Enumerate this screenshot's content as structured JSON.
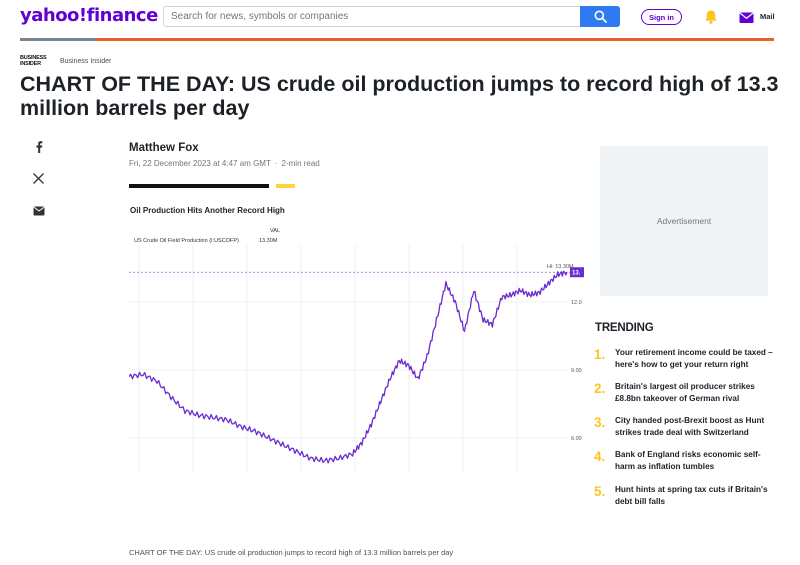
{
  "header": {
    "logo_text": "yahoo!finance",
    "search_placeholder": "Search for news, symbols or companies",
    "signin_label": "Sign in",
    "mail_label": "Mail",
    "brand_color": "#6001d2",
    "accent_color": "#e8602c"
  },
  "source": {
    "logo_text": "BUSINESS INSIDER",
    "name": "Business Insider"
  },
  "article": {
    "title": "CHART OF THE DAY: US crude oil production jumps to record high of 13.3 million barrels per day",
    "author": "Matthew Fox",
    "date": "Fri, 22 December 2023 at 4:47 am GMT",
    "read_time": "2-min read",
    "caption": "CHART OF THE DAY: US crude oil production jumps to record high of 13.3 million barrels per day"
  },
  "share_icons": [
    "facebook-icon",
    "x-icon",
    "email-icon"
  ],
  "chart": {
    "title": "Oil Production Hits Another Record High",
    "val_header": "VAL",
    "series_label": "US Crude Oil Field Production (I:USCOFP)",
    "series_value": "13.30M",
    "hi_label": "Hi: 13.30M",
    "current_tag": "13.",
    "line_color": "#6a2bd0",
    "ticks": [
      "12.0",
      "9.00",
      "6.00"
    ]
  },
  "chart_data": {
    "type": "line",
    "title": "Oil Production Hits Another Record High",
    "series": [
      {
        "name": "US Crude Oil Field Production (I:USCOFP)",
        "x_index": [
          0,
          6,
          12,
          18,
          24,
          30,
          36,
          42,
          48,
          54,
          60,
          66,
          72,
          78,
          84,
          90,
          96,
          100,
          104,
          108,
          112,
          116,
          120,
          124,
          128,
          132,
          136,
          140,
          144,
          148,
          152,
          156,
          160,
          164,
          168,
          172,
          176,
          180,
          184,
          188
        ],
        "values": [
          8.7,
          8.8,
          8.5,
          7.8,
          7.2,
          7.0,
          6.9,
          6.8,
          6.5,
          6.3,
          6.0,
          5.7,
          5.4,
          5.1,
          5.0,
          5.1,
          5.3,
          5.8,
          6.6,
          7.6,
          8.6,
          9.4,
          9.2,
          8.6,
          9.6,
          11.2,
          12.8,
          12.0,
          10.7,
          12.5,
          11.2,
          11.0,
          12.2,
          12.3,
          12.5,
          12.3,
          12.4,
          12.8,
          13.2,
          13.3
        ]
      }
    ],
    "yticks": [
      12.0,
      9.0,
      6.0
    ],
    "ylim": [
      4.5,
      14.5
    ],
    "high": 13.3,
    "grid": true
  },
  "ad": {
    "label": "Advertisement"
  },
  "trending": {
    "title": "TRENDING",
    "items": [
      {
        "num": "1.",
        "text": "Your retirement income could be taxed – here's how to get your return right"
      },
      {
        "num": "2.",
        "text": "Britain's largest oil producer strikes £8.8bn takeover of German rival"
      },
      {
        "num": "3.",
        "text": "City handed post-Brexit boost as Hunt strikes trade deal with Switzerland"
      },
      {
        "num": "4.",
        "text": "Bank of England risks economic self-harm as inflation tumbles"
      },
      {
        "num": "5.",
        "text": "Hunt hints at spring tax cuts if Britain's debt bill falls"
      }
    ]
  }
}
